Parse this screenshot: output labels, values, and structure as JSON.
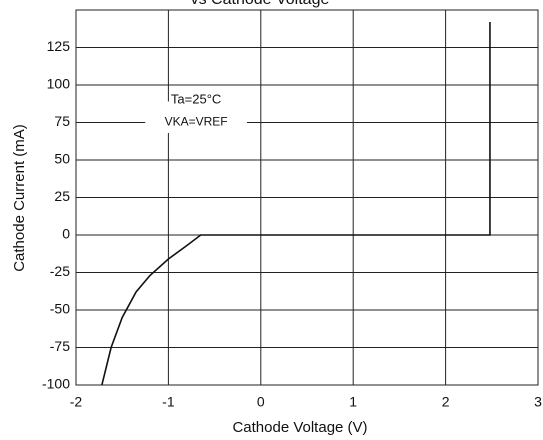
{
  "chart_data": {
    "type": "line",
    "title": "vs Cathode Voltage",
    "xlabel": "Cathode Voltage  (V)",
    "ylabel": "Cathode  Current (mA)",
    "annotations": [
      "Ta=25°C",
      "VKA=VREF"
    ],
    "xlim": [
      -2,
      3
    ],
    "ylim": [
      -100,
      150
    ],
    "xticks": [
      -2,
      -1,
      0,
      1,
      2,
      3
    ],
    "yticks": [
      -100,
      -75,
      -50,
      -25,
      0,
      25,
      50,
      75,
      100,
      125
    ],
    "grid": true,
    "x": [
      -1.72,
      -1.62,
      -1.5,
      -1.35,
      -1.2,
      -1.0,
      -0.8,
      -0.65,
      2.48,
      2.48
    ],
    "series": [
      {
        "color": "#111111",
        "values": [
          -100,
          -75,
          -55,
          -38,
          -27,
          -16,
          -7,
          0,
          0,
          142
        ]
      }
    ]
  }
}
